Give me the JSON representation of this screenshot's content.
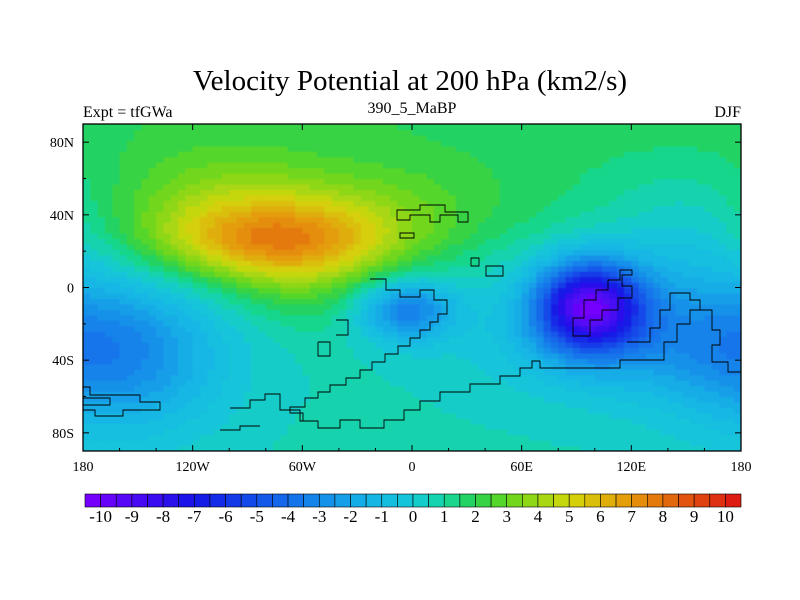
{
  "chart_data": {
    "type": "heatmap",
    "title": "Velocity Potential at 200 hPa (km2/s)",
    "left_string": "Expt = tfGWa",
    "center_string": "390_5_MaBP",
    "right_string": "DJF",
    "xlim": [
      -180,
      180
    ],
    "ylim": [
      -90,
      90
    ],
    "xticks": [
      {
        "value": -180,
        "label": "180"
      },
      {
        "value": -120,
        "label": "120W"
      },
      {
        "value": -60,
        "label": "60W"
      },
      {
        "value": 0,
        "label": "0"
      },
      {
        "value": 60,
        "label": "60E"
      },
      {
        "value": 120,
        "label": "120E"
      },
      {
        "value": 180,
        "label": "180"
      }
    ],
    "yticks": [
      {
        "value": 80,
        "label": "80N"
      },
      {
        "value": 40,
        "label": "40N"
      },
      {
        "value": 0,
        "label": "0"
      },
      {
        "value": -40,
        "label": "40S"
      },
      {
        "value": -80,
        "label": "80S"
      }
    ],
    "colorbar": {
      "min": -10.5,
      "max": 10.5,
      "step": 0.5,
      "labels": [
        "-10",
        "-9",
        "-8",
        "-7",
        "-6",
        "-5",
        "-4",
        "-3",
        "-2",
        "-1",
        "0",
        "1",
        "2",
        "3",
        "4",
        "5",
        "6",
        "7",
        "8",
        "9",
        "10"
      ]
    },
    "field_centers": [
      {
        "lon": -75,
        "lat": 25,
        "value": 7.0,
        "note": "velocity potential maximum"
      },
      {
        "lon": 97,
        "lat": -10,
        "value": -10.0,
        "note": "velocity potential minimum"
      },
      {
        "lon": -3,
        "lat": -12,
        "value": -5.0,
        "note": "secondary minimum"
      }
    ]
  }
}
